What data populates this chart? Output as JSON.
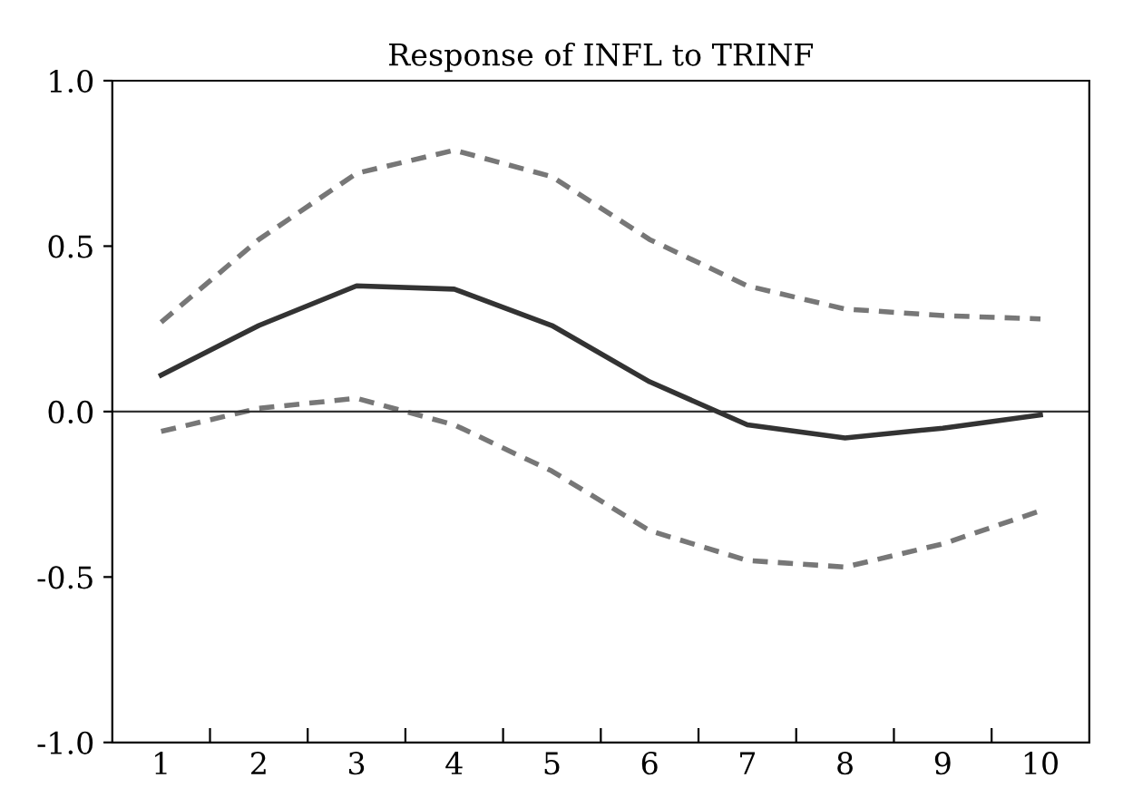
{
  "chart_data": {
    "type": "line",
    "title": "Response of INFL to TRINF",
    "categories": [
      "1",
      "2",
      "3",
      "4",
      "5",
      "6",
      "7",
      "8",
      "9",
      "10"
    ],
    "series": [
      {
        "color": "#333333",
        "line_style": "solid",
        "values": [
          0.11,
          0.26,
          0.38,
          0.37,
          0.26,
          0.09,
          -0.04,
          -0.08,
          -0.05,
          -0.01
        ]
      },
      {
        "color": "#777777",
        "line_style": "dashed",
        "values": [
          0.27,
          0.52,
          0.72,
          0.79,
          0.71,
          0.52,
          0.38,
          0.31,
          0.29,
          0.28
        ]
      },
      {
        "color": "#777777",
        "line_style": "dashed",
        "values": [
          -0.06,
          0.01,
          0.04,
          -0.04,
          -0.18,
          -0.36,
          -0.45,
          -0.47,
          -0.4,
          -0.3
        ]
      }
    ],
    "ylim": [
      -1.0,
      1.0
    ],
    "yticks": [
      {
        "value": -1.0,
        "label": "-1.0"
      },
      {
        "value": -0.5,
        "label": "-0.5"
      },
      {
        "value": 0.0,
        "label": "0.0"
      },
      {
        "value": 0.5,
        "label": "0.5"
      },
      {
        "value": 1.0,
        "label": "1.0"
      }
    ],
    "ref_lines": [
      {
        "axis": "y",
        "value": 0.0,
        "label": null,
        "color": "#333333"
      }
    ],
    "grid": false,
    "legend": false
  }
}
